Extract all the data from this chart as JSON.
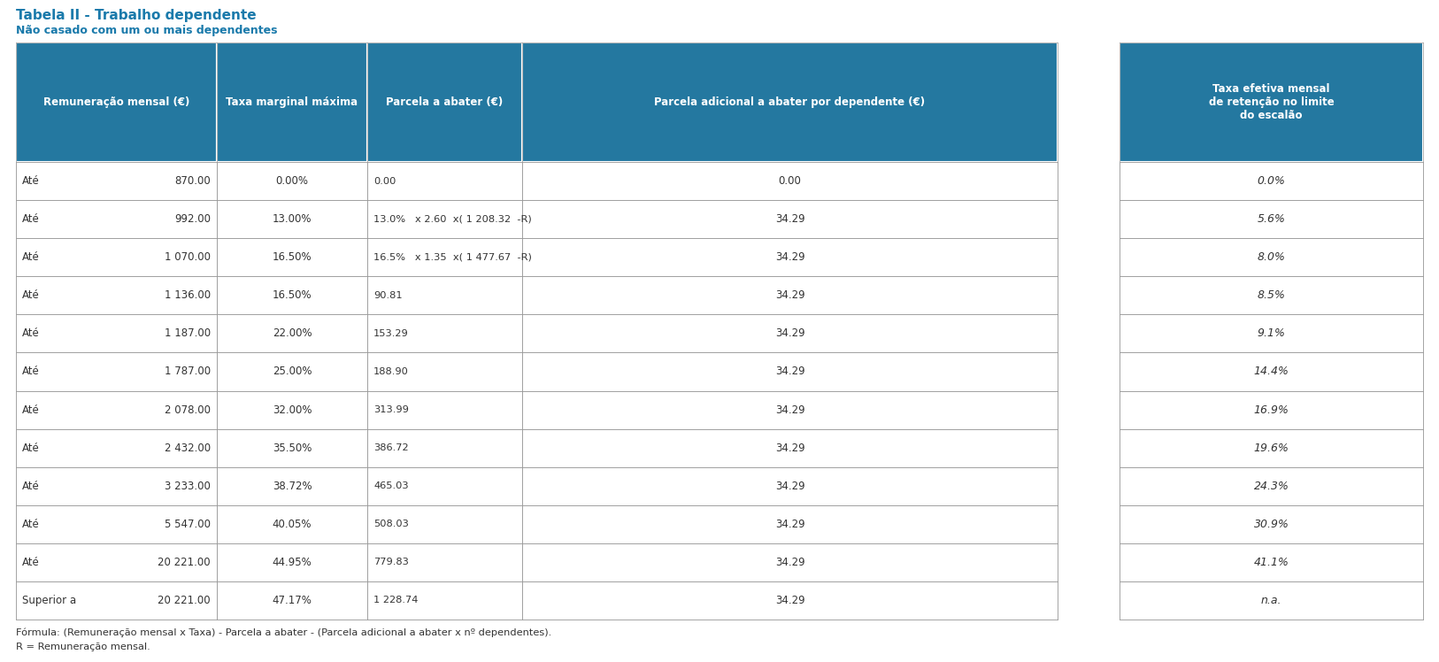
{
  "title": "Tabela II - Trabalho dependente",
  "subtitle": "Não casado com um ou mais dependentes",
  "title_color": "#1a7aab",
  "header_bg": "#2478a0",
  "header_text_color": "#ffffff",
  "data_text_color": "#333333",
  "border_color": "#999999",
  "col_headers": [
    "Remuneração mensal (€)",
    "Taxa marginal máxima",
    "Parcela a abater (€)",
    "Parcela adicional a abater por dependente (€)",
    "Taxa efetiva mensal\nde retenção no limite\ndo escalão"
  ],
  "row_data": [
    [
      "Até",
      "870.00",
      "0.00%",
      "0.00",
      "0.00",
      "0.0%"
    ],
    [
      "Até",
      "992.00",
      "13.00%",
      "13.0%   x 2.60  x( 1 208.32  -R)",
      "34.29",
      "5.6%"
    ],
    [
      "Até",
      "1 070.00",
      "16.50%",
      "16.5%   x 1.35  x( 1 477.67  -R)",
      "34.29",
      "8.0%"
    ],
    [
      "Até",
      "1 136.00",
      "16.50%",
      "90.81",
      "34.29",
      "8.5%"
    ],
    [
      "Até",
      "1 187.00",
      "22.00%",
      "153.29",
      "34.29",
      "9.1%"
    ],
    [
      "Até",
      "1 787.00",
      "25.00%",
      "188.90",
      "34.29",
      "14.4%"
    ],
    [
      "Até",
      "2 078.00",
      "32.00%",
      "313.99",
      "34.29",
      "16.9%"
    ],
    [
      "Até",
      "2 432.00",
      "35.50%",
      "386.72",
      "34.29",
      "19.6%"
    ],
    [
      "Até",
      "3 233.00",
      "38.72%",
      "465.03",
      "34.29",
      "24.3%"
    ],
    [
      "Até",
      "5 547.00",
      "40.05%",
      "508.03",
      "34.29",
      "30.9%"
    ],
    [
      "Até",
      "20 221.00",
      "44.95%",
      "779.83",
      "34.29",
      "41.1%"
    ],
    [
      "Superior a",
      "20 221.00",
      "47.17%",
      "1 228.74",
      "34.29",
      "n.a."
    ]
  ],
  "effective_rates": [
    "0.0%",
    "5.6%",
    "8.0%",
    "8.5%",
    "9.1%",
    "14.4%",
    "16.9%",
    "19.6%",
    "24.3%",
    "30.9%",
    "41.1%",
    "n.a."
  ],
  "formula_line1": "Fórmula: (Remuneração mensal x Taxa) - Parcela a abater - (Parcela adicional a abater x nº dependentes).",
  "formula_line2": "R = Remuneração mensal."
}
